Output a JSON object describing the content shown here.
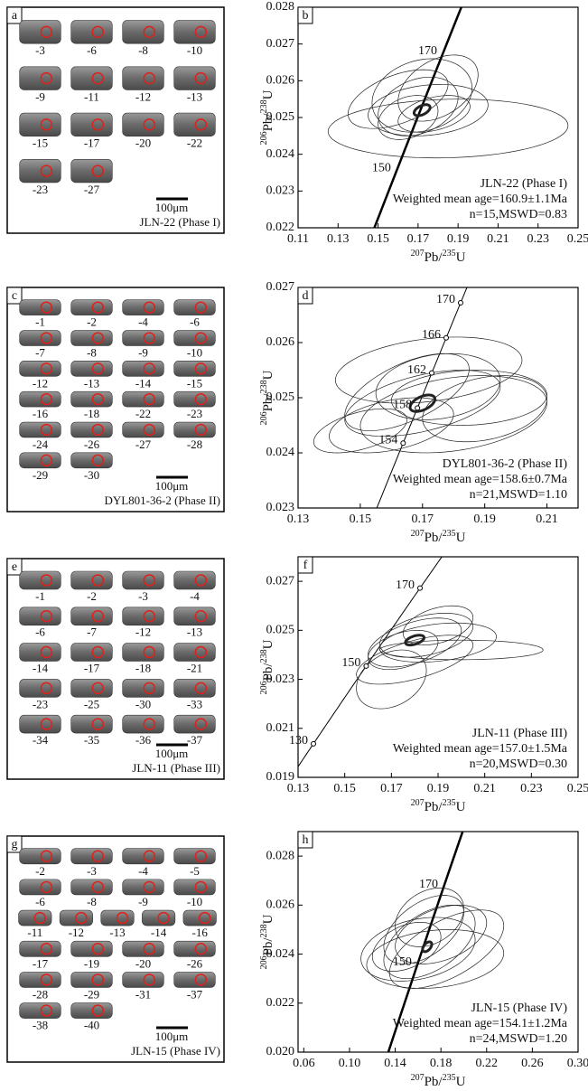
{
  "zircon_panels": [
    {
      "letter": "a",
      "rows": [
        [
          "-3",
          "-6",
          "-8",
          "-10"
        ],
        [
          "-9",
          "-11",
          "-12",
          "-13"
        ],
        [
          "-15",
          "-17",
          "-20",
          "-22"
        ],
        [
          "-23",
          "-27"
        ]
      ],
      "scale": "100μm",
      "sample": "JLN-22 (Phase I)"
    },
    {
      "letter": "c",
      "rows": [
        [
          "-1",
          "-2",
          "-4",
          "-6"
        ],
        [
          "-7",
          "-8",
          "-9",
          "-10"
        ],
        [
          "-12",
          "-13",
          "-14",
          "-15"
        ],
        [
          "-16",
          "-18",
          "-22",
          "-23"
        ],
        [
          "-24",
          "-26",
          "-27",
          "-28"
        ],
        [
          "-29",
          "-30"
        ]
      ],
      "scale": "100μm",
      "sample": "DYL801-36-2 (Phase II)"
    },
    {
      "letter": "e",
      "rows": [
        [
          "-1",
          "-2",
          "-3",
          "-4"
        ],
        [
          "-6",
          "-7",
          "-12",
          "-13"
        ],
        [
          "-14",
          "-17",
          "-18",
          "-21"
        ],
        [
          "-23",
          "-25",
          "-30",
          "-33"
        ],
        [
          "-34",
          "-35",
          "-36",
          "-37"
        ]
      ],
      "scale": "100μm",
      "sample": "JLN-11 (Phase III)"
    },
    {
      "letter": "g",
      "rows": [
        [
          "-2",
          "-3",
          "-4",
          "-5"
        ],
        [
          "-6",
          "-8",
          "-9",
          "-10"
        ],
        [
          "-11",
          "-12",
          "-13",
          "-14",
          "-16"
        ],
        [
          "-17",
          "-19",
          "-20",
          "-26"
        ],
        [
          "-28",
          "-29",
          "-31",
          "-37"
        ],
        [
          "-38",
          "-40"
        ]
      ],
      "scale": "100μm",
      "sample": "JLN-15 (Phase IV)"
    }
  ],
  "chart_data": [
    {
      "type": "concordia",
      "letter": "b",
      "x_label": [
        "207",
        "Pb/",
        "235",
        "U"
      ],
      "y_label": [
        "206",
        "Pb/",
        "238",
        "U"
      ],
      "xlim": [
        0.11,
        0.25
      ],
      "xticks": [
        0.11,
        0.13,
        0.15,
        0.17,
        0.19,
        0.21,
        0.23,
        0.25
      ],
      "ylim": [
        0.022,
        0.028
      ],
      "yticks": [
        0.022,
        0.023,
        0.024,
        0.025,
        0.026,
        0.027,
        0.028
      ],
      "ages": [
        170,
        150
      ],
      "age_markers": false,
      "concordia_width": 2.5,
      "ellipses": [
        [
          0.17,
          0.0253,
          0.02,
          0.0008,
          0.3
        ],
        [
          0.175,
          0.0252,
          0.03,
          0.0007,
          0.2
        ],
        [
          0.185,
          0.0247,
          0.06,
          0.0008,
          0.1
        ],
        [
          0.16,
          0.0255,
          0.025,
          0.0008,
          0.5
        ],
        [
          0.18,
          0.0258,
          0.02,
          0.0009,
          0.4
        ],
        [
          0.165,
          0.025,
          0.015,
          0.0006,
          0.3
        ],
        [
          0.172,
          0.0256,
          0.025,
          0.001,
          0.2
        ],
        [
          0.178,
          0.0251,
          0.018,
          0.0005,
          0.4
        ]
      ],
      "mean": [
        0.172,
        0.0252,
        0.004,
        0.00015,
        0.5
      ],
      "annotations": [
        "JLN-22 (Phase I)",
        "Weighted mean age=160.9±1.1Ma",
        "n=15,MSWD=0.83"
      ]
    },
    {
      "type": "concordia",
      "letter": "d",
      "x_label": [
        "207",
        "Pb/",
        "235",
        "U"
      ],
      "y_label": [
        "206",
        "Pb/",
        "238",
        "U"
      ],
      "xlim": [
        0.13,
        0.22
      ],
      "xticks": [
        0.13,
        0.15,
        0.17,
        0.19,
        0.21
      ],
      "ylim": [
        0.023,
        0.027
      ],
      "yticks": [
        0.023,
        0.024,
        0.025,
        0.026,
        0.027
      ],
      "ages": [
        170,
        166,
        162,
        158,
        154
      ],
      "age_markers": true,
      "concordia_width": 1,
      "ellipses": [
        [
          0.17,
          0.0249,
          0.025,
          0.0006,
          0.5
        ],
        [
          0.18,
          0.0247,
          0.03,
          0.0007,
          0.3
        ],
        [
          0.16,
          0.0245,
          0.02,
          0.0005,
          0.4
        ],
        [
          0.175,
          0.0252,
          0.02,
          0.0006,
          0.2
        ],
        [
          0.185,
          0.025,
          0.025,
          0.0005,
          0.1
        ],
        [
          0.165,
          0.0251,
          0.02,
          0.0007,
          0.6
        ],
        [
          0.19,
          0.0248,
          0.02,
          0.0006,
          0.3
        ],
        [
          0.172,
          0.0255,
          0.03,
          0.0006,
          0.3
        ],
        [
          0.15,
          0.0244,
          0.015,
          0.0004,
          0.5
        ]
      ],
      "mean": [
        0.17,
        0.0249,
        0.004,
        0.00015,
        0.5
      ],
      "annotations": [
        "DYL801-36-2 (Phase II)",
        "Weighted mean age=158.6±0.7Ma",
        "n=21,MSWD=1.10"
      ]
    },
    {
      "type": "concordia",
      "letter": "f",
      "x_label": [
        "207",
        "Pb/",
        "235",
        "U"
      ],
      "y_label": [
        "206",
        "Pb/",
        "238",
        "U"
      ],
      "xlim": [
        0.13,
        0.25
      ],
      "xticks": [
        0.13,
        0.15,
        0.17,
        0.19,
        0.21,
        0.23,
        0.25
      ],
      "ylim": [
        0.019,
        0.028
      ],
      "yticks": [
        0.019,
        0.021,
        0.023,
        0.025,
        0.027
      ],
      "ages": [
        170,
        150,
        130
      ],
      "age_markers": true,
      "concordia_width": 1,
      "ellipses": [
        [
          0.18,
          0.0245,
          0.02,
          0.001,
          0.5
        ],
        [
          0.185,
          0.0248,
          0.02,
          0.0009,
          0.4
        ],
        [
          0.19,
          0.0245,
          0.025,
          0.0008,
          0.3
        ],
        [
          0.175,
          0.0242,
          0.015,
          0.0008,
          0.4
        ],
        [
          0.2,
          0.0242,
          0.035,
          0.0004,
          0
        ],
        [
          0.17,
          0.023,
          0.015,
          0.0012,
          0.3
        ],
        [
          0.19,
          0.0252,
          0.015,
          0.0008,
          0.4
        ],
        [
          0.18,
          0.0238,
          0.025,
          0.001,
          0.6
        ]
      ],
      "mean": [
        0.18,
        0.0246,
        0.004,
        0.0002,
        0.5
      ],
      "annotations": [
        "JLN-11 (Phase III)",
        "Weighted mean age=157.0±1.5Ma",
        "n=20,MSWD=0.30"
      ]
    },
    {
      "type": "concordia",
      "letter": "h",
      "x_label": [
        "207",
        "Pb/",
        "235",
        "U"
      ],
      "y_label": [
        "206",
        "Pb/",
        "238",
        "U"
      ],
      "xlim": [
        0.055,
        0.3
      ],
      "xticks": [
        0.06,
        {
          "value": 0.1,
          "label": "0.10"
        },
        0.14,
        0.18,
        0.22,
        0.26,
        {
          "value": 0.3,
          "label": "0.30"
        }
      ],
      "ylim": [
        0.02,
        0.029
      ],
      "yticks": [
        {
          "value": 0.02,
          "label": "0.020"
        },
        0.022,
        0.024,
        0.026,
        0.028
      ],
      "ages": [
        170,
        150
      ],
      "age_markers": false,
      "concordia_width": 2.5,
      "ellipses": [
        [
          0.17,
          0.0245,
          0.04,
          0.0015,
          0.5
        ],
        [
          0.16,
          0.0242,
          0.05,
          0.0013,
          0.3
        ],
        [
          0.18,
          0.0248,
          0.04,
          0.0012,
          0.4
        ],
        [
          0.175,
          0.0238,
          0.06,
          0.0012,
          0.2
        ],
        [
          0.165,
          0.025,
          0.035,
          0.0014,
          0.5
        ],
        [
          0.15,
          0.0243,
          0.03,
          0.001,
          0.4
        ],
        [
          0.185,
          0.0242,
          0.05,
          0.0016,
          0.6
        ],
        [
          0.17,
          0.0255,
          0.03,
          0.0012,
          0.3
        ]
      ],
      "mean": [
        0.168,
        0.0243,
        0.004,
        0.0002,
        0.5
      ],
      "annotations": [
        "JLN-15 (Phase IV)",
        "Weighted mean age=154.1±1.2Ma",
        "n=24,MSWD=1.20"
      ]
    }
  ]
}
